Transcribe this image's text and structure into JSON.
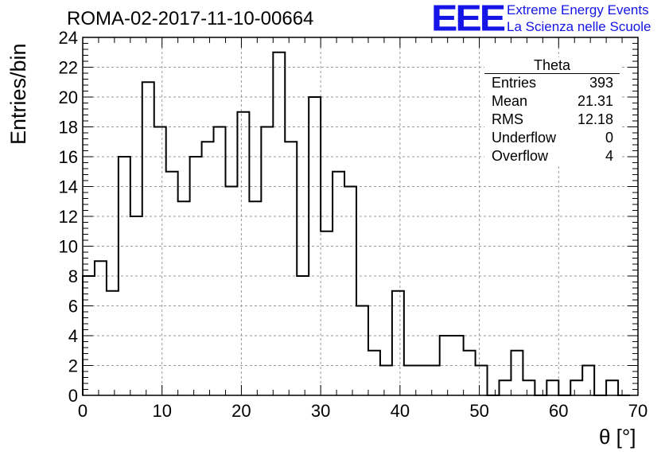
{
  "header": {
    "run_title": "ROMA-02-2017-11-10-00664",
    "logo_letters": "EEE",
    "logo_line1": "Extreme Energy Events",
    "logo_line2": "La Scienza nelle Scuole",
    "logo_color": "#1414e6"
  },
  "stats_box": {
    "title": "Theta",
    "rows": [
      {
        "label": "Entries",
        "value": "393"
      },
      {
        "label": "Mean",
        "value": "21.31"
      },
      {
        "label": "RMS",
        "value": "12.18"
      },
      {
        "label": "Underflow",
        "value": "0"
      },
      {
        "label": "Overflow",
        "value": "4"
      }
    ]
  },
  "chart_data": {
    "type": "bar",
    "histogram": true,
    "xlabel": "θ [°]",
    "ylabel": "Entries/bin",
    "xlim": [
      0,
      70
    ],
    "ylim": [
      0,
      24
    ],
    "grid": true,
    "bin_width": 1.5,
    "x_ticks": [
      0,
      10,
      20,
      30,
      40,
      50,
      60,
      70
    ],
    "y_ticks": [
      0,
      2,
      4,
      6,
      8,
      10,
      12,
      14,
      16,
      18,
      20,
      22,
      24
    ],
    "bin_edges_start": 0,
    "values": [
      8,
      9,
      7,
      16,
      12,
      21,
      18,
      15,
      13,
      16,
      17,
      18,
      14,
      19,
      13,
      18,
      23,
      17,
      8,
      20,
      11,
      15,
      14,
      6,
      3,
      2,
      7,
      2,
      2,
      2,
      4,
      4,
      3,
      2,
      0,
      1,
      3,
      1,
      0,
      1,
      0,
      1,
      2,
      0,
      1,
      0
    ]
  }
}
